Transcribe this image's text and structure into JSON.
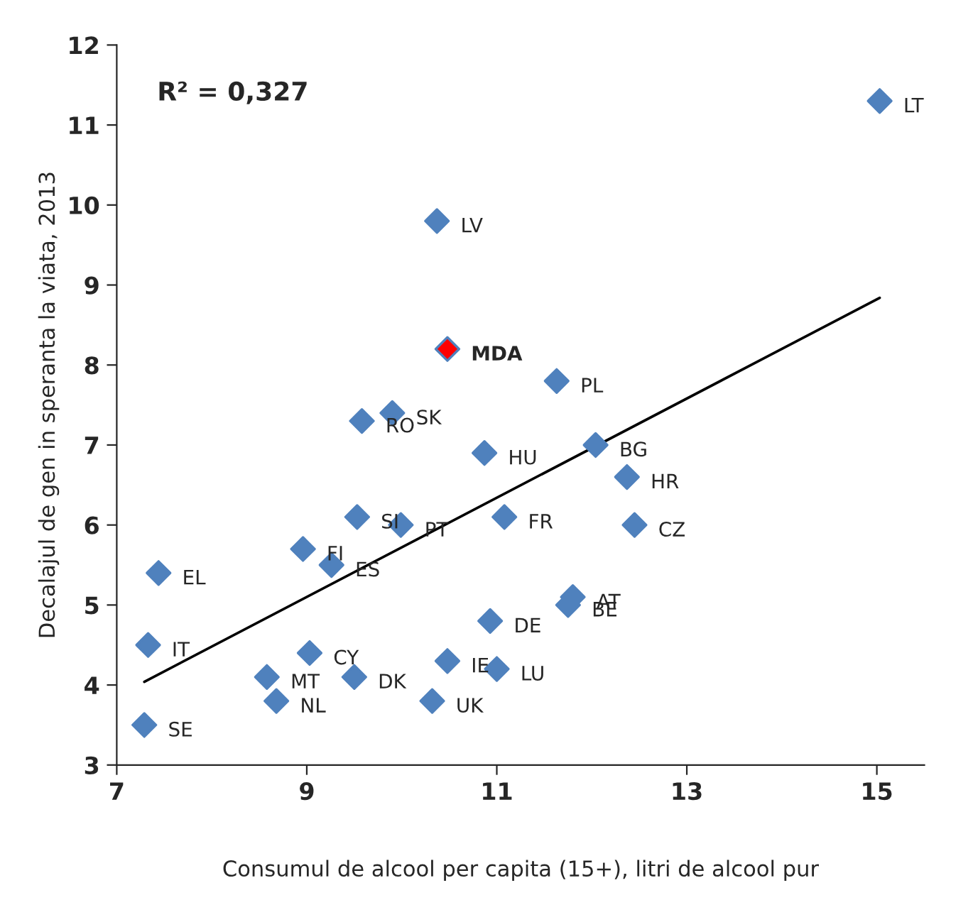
{
  "chart_data": {
    "type": "scatter",
    "xlabel": "Consumul de alcool per capita (15+), litri de alcool pur",
    "ylabel": "Decalajul de gen in speranta la viata, 2013",
    "xlim": [
      7,
      15.5
    ],
    "xticks": [
      7,
      9,
      11,
      13,
      15
    ],
    "ylim": [
      3,
      12
    ],
    "yticks": [
      3,
      4,
      5,
      6,
      7,
      8,
      9,
      10,
      11,
      12
    ],
    "grid": false,
    "legend": false,
    "series": [
      {
        "color": "#4f81bd",
        "x": [
          15.03,
          10.37,
          10.48,
          11.63,
          9.9,
          9.58,
          10.87,
          12.04,
          12.37,
          8.96,
          9.53,
          9.99,
          9.26,
          11.08,
          12.45,
          7.44,
          7.33,
          7.29,
          9.03,
          8.58,
          8.68,
          9.5,
          10.32,
          10.48,
          11.0,
          10.93,
          11.8,
          11.75
        ],
        "marker": "diamond",
        "values": [
          11.3,
          9.8,
          8.2,
          7.8,
          7.4,
          7.3,
          6.9,
          7.0,
          6.6,
          5.7,
          6.1,
          6.0,
          5.5,
          6.1,
          6.0,
          5.4,
          4.5,
          3.5,
          4.4,
          4.1,
          3.8,
          4.1,
          3.8,
          4.3,
          4.2,
          4.8,
          5.1,
          5.0
        ],
        "colors": [
          "#4f81bd",
          "#4f81bd",
          "#ff0000",
          "#4f81bd",
          "#4f81bd",
          "#4f81bd",
          "#4f81bd",
          "#4f81bd",
          "#4f81bd",
          "#4f81bd",
          "#4f81bd",
          "#4f81bd",
          "#4f81bd",
          "#4f81bd",
          "#4f81bd",
          "#4f81bd",
          "#4f81bd",
          "#4f81bd",
          "#4f81bd",
          "#4f81bd",
          "#4f81bd",
          "#4f81bd",
          "#4f81bd",
          "#4f81bd",
          "#4f81bd",
          "#4f81bd",
          "#4f81bd",
          "#4f81bd"
        ]
      },
      {
        "type": "line",
        "color": "#000000",
        "x": [
          7.29,
          15.03
        ],
        "values": [
          4.04,
          8.84
        ]
      }
    ],
    "annotations": [
      "R² = 0,327",
      {
        "text": "LT",
        "x": 15.03,
        "y": 11.3
      },
      {
        "text": "LV",
        "x": 10.37,
        "y": 9.8
      },
      {
        "text": "MDA",
        "x": 10.48,
        "y": 8.2
      },
      {
        "text": "PL",
        "x": 11.63,
        "y": 7.8
      },
      {
        "text": "SK",
        "x": 9.9,
        "y": 7.4
      },
      {
        "text": "RO",
        "x": 9.58,
        "y": 7.3
      },
      {
        "text": "HU",
        "x": 10.87,
        "y": 6.9
      },
      {
        "text": "BG",
        "x": 12.04,
        "y": 7.0
      },
      {
        "text": "HR",
        "x": 12.37,
        "y": 6.6
      },
      {
        "text": "FI",
        "x": 8.96,
        "y": 5.7
      },
      {
        "text": "SI",
        "x": 9.53,
        "y": 6.1
      },
      {
        "text": "PT",
        "x": 9.99,
        "y": 6.0
      },
      {
        "text": "ES",
        "x": 9.26,
        "y": 5.5
      },
      {
        "text": "FR",
        "x": 11.08,
        "y": 6.1
      },
      {
        "text": "CZ",
        "x": 12.45,
        "y": 6.0
      },
      {
        "text": "EL",
        "x": 7.44,
        "y": 5.4
      },
      {
        "text": "IT",
        "x": 7.33,
        "y": 4.5
      },
      {
        "text": "SE",
        "x": 7.29,
        "y": 3.5
      },
      {
        "text": "CY",
        "x": 9.03,
        "y": 4.4
      },
      {
        "text": "MT",
        "x": 8.58,
        "y": 4.1
      },
      {
        "text": "NL",
        "x": 8.68,
        "y": 3.8
      },
      {
        "text": "DK",
        "x": 9.5,
        "y": 4.1
      },
      {
        "text": "UK",
        "x": 10.32,
        "y": 3.8
      },
      {
        "text": "IE",
        "x": 10.48,
        "y": 4.3
      },
      {
        "text": "LU",
        "x": 11.0,
        "y": 4.2
      },
      {
        "text": "DE",
        "x": 10.93,
        "y": 4.8
      },
      {
        "text": "AT",
        "x": 11.8,
        "y": 5.1
      },
      {
        "text": "BE",
        "x": 11.75,
        "y": 5.0
      }
    ]
  }
}
